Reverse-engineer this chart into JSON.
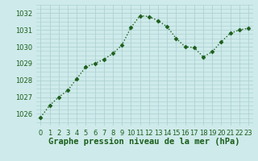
{
  "x": [
    0,
    1,
    2,
    3,
    4,
    5,
    6,
    7,
    8,
    9,
    10,
    11,
    12,
    13,
    14,
    15,
    16,
    17,
    18,
    19,
    20,
    21,
    22,
    23
  ],
  "y": [
    1025.8,
    1026.5,
    1027.0,
    1027.4,
    1028.1,
    1028.8,
    1029.0,
    1029.25,
    1029.6,
    1030.1,
    1031.15,
    1031.85,
    1031.8,
    1031.55,
    1031.2,
    1030.5,
    1030.0,
    1029.95,
    1029.4,
    1029.7,
    1030.3,
    1030.8,
    1031.0,
    1031.1
  ],
  "line_color": "#1a5e1a",
  "marker": "D",
  "marker_size": 2.5,
  "line_width": 1.0,
  "bg_color": "#ceeaea",
  "grid_color": "#aacece",
  "title": "Graphe pression niveau de la mer (hPa)",
  "title_fontsize": 7.5,
  "ylabel_ticks": [
    1026,
    1027,
    1028,
    1029,
    1030,
    1031,
    1032
  ],
  "xlim": [
    -0.5,
    23.5
  ],
  "ylim": [
    1025.3,
    1032.5
  ],
  "xtick_labels": [
    "0",
    "1",
    "2",
    "3",
    "4",
    "5",
    "6",
    "7",
    "8",
    "9",
    "10",
    "11",
    "12",
    "13",
    "14",
    "15",
    "16",
    "17",
    "18",
    "19",
    "20",
    "21",
    "22",
    "23"
  ],
  "title_color": "#1a5e1a",
  "tick_fontsize": 6.0
}
